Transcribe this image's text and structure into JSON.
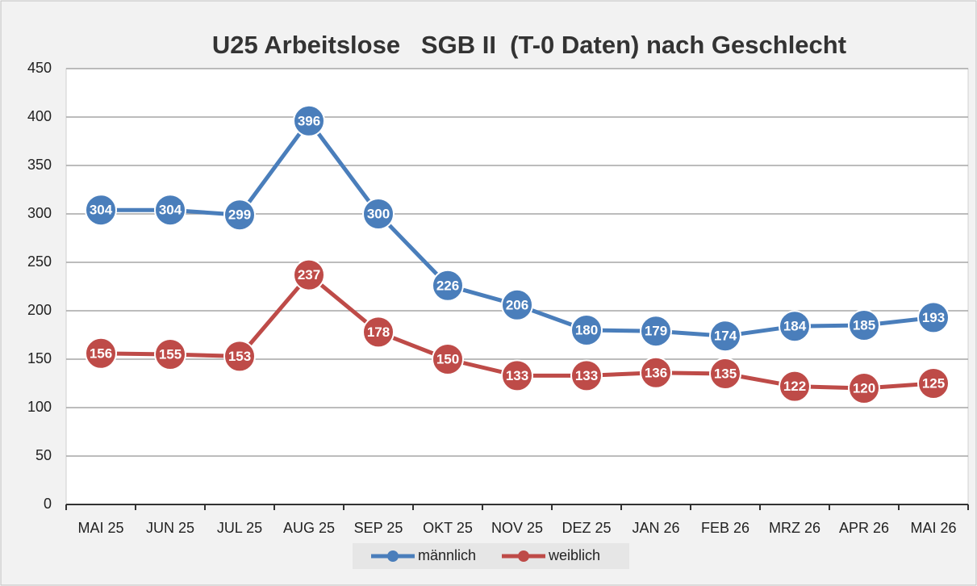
{
  "chart_data": {
    "type": "line",
    "title": "U25 Arbeitslose   SGB II  (T-0 Daten) nach Geschlecht",
    "categories": [
      "MAI 25",
      "JUN 25",
      "JUL 25",
      "AUG 25",
      "SEP 25",
      "OKT 25",
      "NOV 25",
      "DEZ 25",
      "JAN 26",
      "FEB 26",
      "MRZ 26",
      "APR 26",
      "MAI 26"
    ],
    "series": [
      {
        "name": "männlich",
        "color": "#4a7ebb",
        "values": [
          304,
          304,
          299,
          396,
          300,
          226,
          206,
          180,
          179,
          174,
          184,
          185,
          193
        ]
      },
      {
        "name": "weiblich",
        "color": "#be4b48",
        "values": [
          156,
          155,
          153,
          237,
          178,
          150,
          133,
          133,
          136,
          135,
          122,
          120,
          125
        ]
      }
    ],
    "ylim": [
      0,
      450
    ],
    "yticks": [
      0,
      50,
      100,
      150,
      200,
      250,
      300,
      350,
      400,
      450
    ],
    "grid": true,
    "legend": "bottom"
  }
}
